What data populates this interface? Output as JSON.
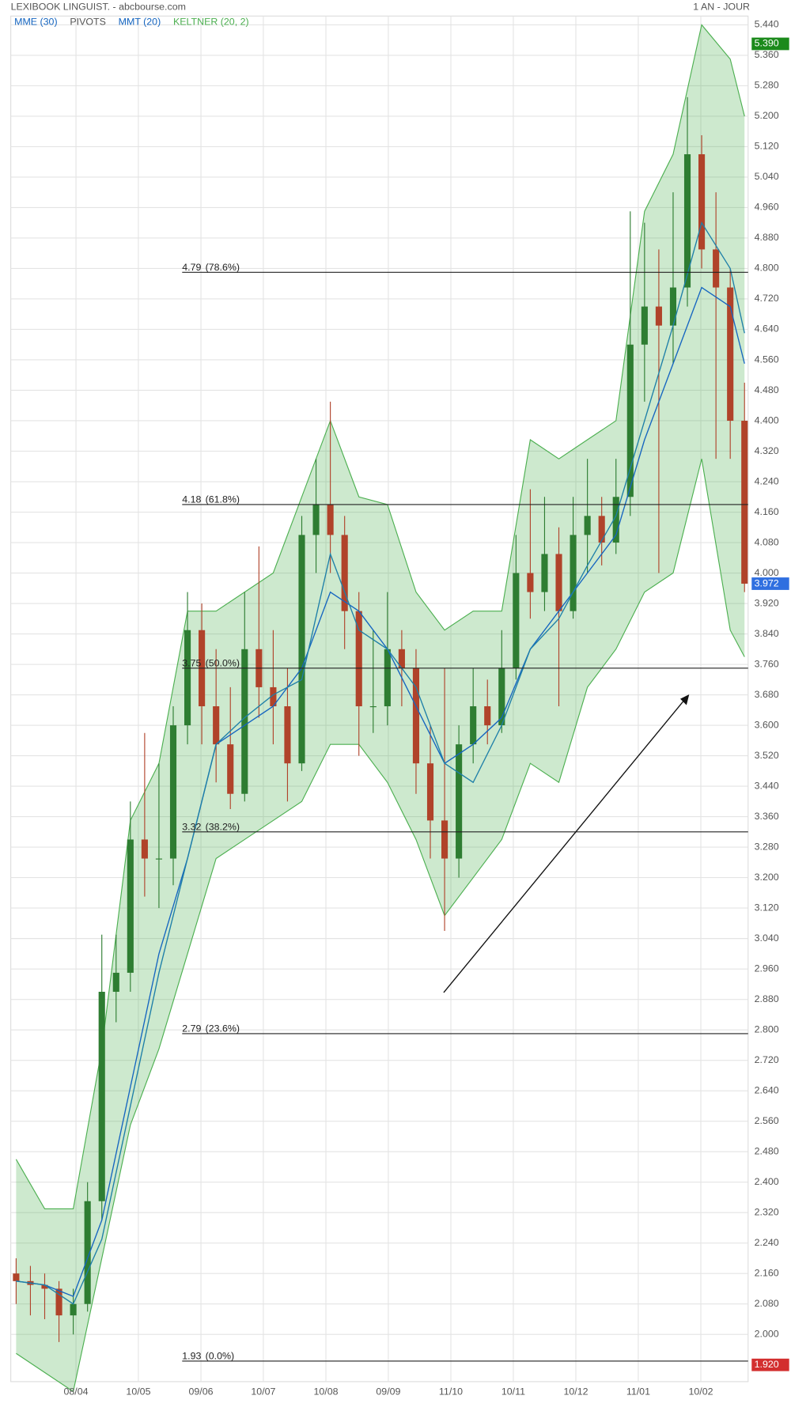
{
  "chart_data": {
    "type": "candlestick",
    "title": "LEXIBOOK LINGUIST. - abcbourse.com",
    "period": "1 AN - JOUR",
    "legend": [
      {
        "name": "MME (30)",
        "color": "#1565c0"
      },
      {
        "name": "PIVOTS",
        "color": "#555555"
      },
      {
        "name": "MMT (20)",
        "color": "#1565c0"
      },
      {
        "name": "KELTNER (20, 2)",
        "color": "#4caf50"
      }
    ],
    "up_color": "#2e7d32",
    "down_color": "#b0432a",
    "xlim": [
      -0.375,
      51.25
    ],
    "xticks": [
      {
        "value": 4.19,
        "label": "08/04"
      },
      {
        "value": 8.56,
        "label": "10/05"
      },
      {
        "value": 12.94,
        "label": "09/06"
      },
      {
        "value": 17.31,
        "label": "10/07"
      },
      {
        "value": 21.69,
        "label": "10/08"
      },
      {
        "value": 26.06,
        "label": "09/09"
      },
      {
        "value": 30.44,
        "label": "11/10"
      },
      {
        "value": 34.81,
        "label": "10/11"
      },
      {
        "value": 39.19,
        "label": "10/12"
      },
      {
        "value": 43.56,
        "label": "11/01"
      },
      {
        "value": 47.94,
        "label": "10/02"
      }
    ],
    "ylim": [
      1.876,
      5.463
    ],
    "yticks": [
      {
        "value": 5.44,
        "label": "5.440"
      },
      {
        "value": 5.36,
        "label": "5.360"
      },
      {
        "value": 5.28,
        "label": "5.280"
      },
      {
        "value": 5.2,
        "label": "5.200"
      },
      {
        "value": 5.12,
        "label": "5.120"
      },
      {
        "value": 5.04,
        "label": "5.040"
      },
      {
        "value": 4.96,
        "label": "4.960"
      },
      {
        "value": 4.88,
        "label": "4.880"
      },
      {
        "value": 4.8,
        "label": "4.800"
      },
      {
        "value": 4.72,
        "label": "4.720"
      },
      {
        "value": 4.64,
        "label": "4.640"
      },
      {
        "value": 4.56,
        "label": "4.560"
      },
      {
        "value": 4.48,
        "label": "4.480"
      },
      {
        "value": 4.4,
        "label": "4.400"
      },
      {
        "value": 4.32,
        "label": "4.320"
      },
      {
        "value": 4.24,
        "label": "4.240"
      },
      {
        "value": 4.16,
        "label": "4.160"
      },
      {
        "value": 4.08,
        "label": "4.080"
      },
      {
        "value": 4,
        "label": "4.000"
      },
      {
        "value": 3.92,
        "label": "3.920"
      },
      {
        "value": 3.84,
        "label": "3.840"
      },
      {
        "value": 3.76,
        "label": "3.760"
      },
      {
        "value": 3.68,
        "label": "3.680"
      },
      {
        "value": 3.6,
        "label": "3.600"
      },
      {
        "value": 3.52,
        "label": "3.520"
      },
      {
        "value": 3.44,
        "label": "3.440"
      },
      {
        "value": 3.36,
        "label": "3.360"
      },
      {
        "value": 3.28,
        "label": "3.280"
      },
      {
        "value": 3.2,
        "label": "3.200"
      },
      {
        "value": 3.12,
        "label": "3.120"
      },
      {
        "value": 3.04,
        "label": "3.040"
      },
      {
        "value": 2.96,
        "label": "2.960"
      },
      {
        "value": 2.88,
        "label": "2.880"
      },
      {
        "value": 2.8,
        "label": "2.800"
      },
      {
        "value": 2.72,
        "label": "2.720"
      },
      {
        "value": 2.64,
        "label": "2.640"
      },
      {
        "value": 2.56,
        "label": "2.560"
      },
      {
        "value": 2.48,
        "label": "2.480"
      },
      {
        "value": 2.4,
        "label": "2.400"
      },
      {
        "value": 2.32,
        "label": "2.320"
      },
      {
        "value": 2.24,
        "label": "2.240"
      },
      {
        "value": 2.16,
        "label": "2.160"
      },
      {
        "value": 2.08,
        "label": "2.080"
      },
      {
        "value": 2,
        "label": "2.000"
      }
    ],
    "grid": true,
    "badges": [
      {
        "value": 5.39,
        "label": "5.390",
        "color": "#1b8a1b"
      },
      {
        "value": 3.972,
        "label": "3.972",
        "color": "#2f6fe0"
      },
      {
        "value": 1.92,
        "label": "1.920",
        "color": "#d32f2f"
      }
    ],
    "fibonacci": [
      {
        "value": 4.79,
        "pct": 78.6,
        "pct_label": "(78.6%)"
      },
      {
        "value": 4.18,
        "pct": 61.8,
        "pct_label": "(61.8%)"
      },
      {
        "value": 3.75,
        "pct": 50.0,
        "pct_label": "(50.0%)"
      },
      {
        "value": 3.32,
        "pct": 38.2,
        "pct_label": "(38.2%)"
      },
      {
        "value": 2.79,
        "pct": 23.6,
        "pct_label": "(23.6%)"
      },
      {
        "value": 1.93,
        "pct": 0.0,
        "pct_label": "(0.0%)"
      }
    ],
    "candles": [
      [
        2.16,
        2.2,
        2.08,
        2.14
      ],
      [
        2.14,
        2.18,
        2.05,
        2.13
      ],
      [
        2.13,
        2.16,
        2.04,
        2.12
      ],
      [
        2.12,
        2.14,
        1.98,
        2.05
      ],
      [
        2.05,
        2.12,
        2.0,
        2.08
      ],
      [
        2.08,
        2.4,
        2.06,
        2.35
      ],
      [
        2.35,
        3.05,
        2.3,
        2.9
      ],
      [
        2.9,
        3.05,
        2.82,
        2.95
      ],
      [
        2.95,
        3.4,
        2.9,
        3.3
      ],
      [
        3.3,
        3.58,
        3.15,
        3.25
      ],
      [
        3.25,
        3.5,
        3.12,
        3.25
      ],
      [
        3.25,
        3.65,
        3.18,
        3.6
      ],
      [
        3.6,
        3.95,
        3.55,
        3.85
      ],
      [
        3.85,
        3.92,
        3.55,
        3.65
      ],
      [
        3.65,
        3.8,
        3.45,
        3.55
      ],
      [
        3.55,
        3.7,
        3.38,
        3.42
      ],
      [
        3.42,
        3.95,
        3.4,
        3.8
      ],
      [
        3.8,
        4.07,
        3.62,
        3.7
      ],
      [
        3.7,
        3.85,
        3.55,
        3.65
      ],
      [
        3.65,
        3.75,
        3.4,
        3.5
      ],
      [
        3.5,
        4.15,
        3.48,
        4.1
      ],
      [
        4.1,
        4.3,
        4.0,
        4.18
      ],
      [
        4.18,
        4.45,
        4.0,
        4.1
      ],
      [
        4.1,
        4.15,
        3.8,
        3.9
      ],
      [
        3.9,
        3.95,
        3.52,
        3.65
      ],
      [
        3.65,
        3.85,
        3.58,
        3.65
      ],
      [
        3.65,
        3.95,
        3.6,
        3.8
      ],
      [
        3.8,
        3.85,
        3.65,
        3.75
      ],
      [
        3.75,
        3.8,
        3.42,
        3.5
      ],
      [
        3.5,
        3.6,
        3.25,
        3.35
      ],
      [
        3.35,
        3.75,
        3.06,
        3.25
      ],
      [
        3.25,
        3.6,
        3.2,
        3.55
      ],
      [
        3.55,
        3.75,
        3.5,
        3.65
      ],
      [
        3.65,
        3.72,
        3.55,
        3.6
      ],
      [
        3.6,
        3.85,
        3.58,
        3.75
      ],
      [
        3.75,
        4.1,
        3.72,
        4.0
      ],
      [
        4.0,
        4.22,
        3.88,
        3.95
      ],
      [
        3.95,
        4.2,
        3.9,
        4.05
      ],
      [
        4.05,
        4.12,
        3.65,
        3.9
      ],
      [
        3.9,
        4.2,
        3.88,
        4.1
      ],
      [
        4.1,
        4.3,
        4.0,
        4.15
      ],
      [
        4.15,
        4.2,
        4.02,
        4.08
      ],
      [
        4.08,
        4.3,
        4.05,
        4.2
      ],
      [
        4.2,
        4.95,
        4.15,
        4.6
      ],
      [
        4.6,
        4.92,
        4.45,
        4.7
      ],
      [
        4.7,
        4.85,
        4.0,
        4.65
      ],
      [
        4.65,
        5.0,
        4.55,
        4.75
      ],
      [
        4.75,
        5.25,
        4.7,
        5.1
      ],
      [
        5.1,
        5.15,
        4.8,
        4.85
      ],
      [
        4.85,
        5.0,
        4.3,
        4.75
      ],
      [
        4.75,
        4.8,
        4.3,
        4.4
      ],
      [
        4.4,
        4.5,
        3.95,
        3.972
      ]
    ],
    "x": [
      0,
      2,
      4,
      6,
      8,
      10,
      12,
      14,
      16,
      18,
      20,
      22,
      24,
      26,
      28,
      30,
      32,
      34,
      36,
      38,
      40,
      42,
      44,
      46,
      48,
      50,
      51
    ],
    "series": [
      {
        "name": "KELTNER (20, 2)",
        "color": "#4caf50",
        "values": [
          2.46,
          2.33,
          2.33,
          2.75,
          3.35,
          3.5,
          3.9,
          3.9,
          3.95,
          4.0,
          4.2,
          4.4,
          4.2,
          4.18,
          3.95,
          3.85,
          3.9,
          3.9,
          4.35,
          4.3,
          4.35,
          4.4,
          4.95,
          5.1,
          5.44,
          5.35,
          5.2
        ]
      },
      {
        "name": "KELTNER (20, 2)",
        "color": "#4caf50",
        "values": [
          1.95,
          1.9,
          1.85,
          2.2,
          2.55,
          2.75,
          3.0,
          3.25,
          3.3,
          3.35,
          3.4,
          3.55,
          3.55,
          3.45,
          3.3,
          3.1,
          3.2,
          3.3,
          3.5,
          3.45,
          3.7,
          3.8,
          3.95,
          4.0,
          4.3,
          3.85,
          3.78
        ]
      },
      {
        "name": "MME (30)",
        "color": "#1565c0",
        "values": [
          2.14,
          2.13,
          2.1,
          2.3,
          2.65,
          3.0,
          3.25,
          3.55,
          3.6,
          3.65,
          3.75,
          3.95,
          3.9,
          3.8,
          3.65,
          3.5,
          3.55,
          3.62,
          3.8,
          3.9,
          4.0,
          4.1,
          4.35,
          4.55,
          4.75,
          4.7,
          4.55
        ]
      },
      {
        "name": "MMT (20)",
        "color": "#1e7fa8",
        "values": [
          2.14,
          2.13,
          2.08,
          2.25,
          2.6,
          2.95,
          3.25,
          3.55,
          3.62,
          3.68,
          3.72,
          4.05,
          3.85,
          3.8,
          3.7,
          3.5,
          3.45,
          3.6,
          3.8,
          3.88,
          4.02,
          4.15,
          4.4,
          4.65,
          4.92,
          4.8,
          4.63
        ]
      }
    ]
  }
}
